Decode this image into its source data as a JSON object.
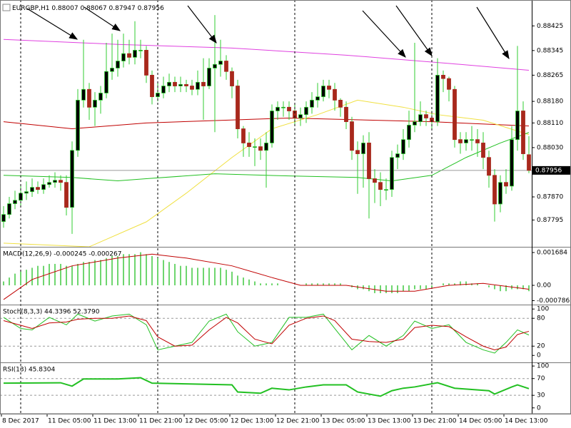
{
  "chart_data": [
    {
      "type": "candlestick",
      "symbol": "EURGBP,H1",
      "categories": [
        "8 Dec 2017",
        null,
        null,
        null,
        null,
        null,
        null,
        null,
        "11 Dec 05:00",
        null,
        null,
        null,
        null,
        null,
        null,
        null,
        "11 Dec 13:00",
        null,
        null,
        null,
        null,
        null,
        null,
        null,
        "11 Dec 21:00",
        null,
        null,
        null,
        null,
        null,
        null,
        null,
        "12 Dec 05:00",
        null,
        null,
        null,
        null,
        null,
        null,
        null,
        "12 Dec 13:00",
        null,
        null,
        null,
        null,
        null,
        null,
        null,
        "12 Dec 21:00",
        null,
        null,
        null,
        null,
        null,
        null,
        null,
        "13 Dec 05:00",
        null,
        null,
        null,
        null,
        null,
        null,
        null,
        "13 Dec 13:00",
        null,
        null,
        null,
        null,
        null,
        null,
        null,
        "13 Dec 21:00",
        null,
        null,
        null,
        null,
        null,
        null,
        null,
        "14 Dec 05:00",
        null,
        null,
        null,
        null,
        null,
        null,
        null,
        "14 Dec 13:00",
        null,
        null,
        null,
        null
      ],
      "open": [
        0.8779,
        0.87813,
        0.87848,
        0.87859,
        0.87882,
        0.87887,
        0.87901,
        0.87894,
        0.8791,
        0.87917,
        0.87924,
        0.87917,
        0.87836,
        0.88021,
        0.88184,
        0.88219,
        0.88161,
        0.88184,
        0.88207,
        0.88277,
        0.88288,
        0.88311,
        0.88335,
        0.88323,
        0.88346,
        0.88346,
        0.88265,
        0.88195,
        0.88207,
        0.8823,
        0.88242,
        0.8823,
        0.88235,
        0.8823,
        0.88219,
        0.88242,
        0.8823,
        0.88288,
        0.883,
        0.88311,
        0.88277,
        0.8823,
        0.88091,
        0.88045,
        0.88033,
        0.88033,
        0.88021,
        0.88045,
        0.88149,
        0.88161,
        0.88161,
        0.88149,
        0.88126,
        0.88137,
        0.88161,
        0.88184,
        0.88195,
        0.8823,
        0.88219,
        0.88184,
        0.88161,
        0.88114,
        0.88021,
        0.8801,
        0.88045,
        0.87929,
        0.87917,
        0.87894,
        0.87894,
        0.87998,
        0.8801,
        0.88056,
        0.88103,
        0.88114,
        0.88137,
        0.88126,
        0.88114,
        0.88265,
        0.88254,
        0.88219,
        0.88056,
        0.88045,
        0.88056,
        0.88056,
        0.88045,
        0.87998,
        0.8794,
        0.87847,
        0.87917,
        0.87905,
        0.88056,
        0.88149,
        0.88007
      ],
      "high": [
        0.8784,
        0.8787,
        0.8789,
        0.8791,
        0.8792,
        0.8793,
        0.8792,
        0.8793,
        0.8794,
        0.8795,
        0.8794,
        0.8794,
        0.8805,
        0.8822,
        0.8838,
        0.8824,
        0.8821,
        0.8823,
        0.8837,
        0.884,
        0.8838,
        0.884,
        0.8838,
        0.8844,
        0.8838,
        0.8836,
        0.8828,
        0.8824,
        0.8826,
        0.8827,
        0.8826,
        0.8826,
        0.8825,
        0.8825,
        0.8828,
        0.8832,
        0.8832,
        0.8846,
        0.8838,
        0.8833,
        0.8829,
        0.8825,
        0.881,
        0.8808,
        0.8806,
        0.8806,
        0.8808,
        0.8817,
        0.8818,
        0.8818,
        0.8818,
        0.8817,
        0.8816,
        0.8818,
        0.8821,
        0.8824,
        0.8825,
        0.8825,
        0.8824,
        0.8819,
        0.8818,
        0.8813,
        0.8805,
        0.8807,
        0.8808,
        0.8796,
        0.8795,
        0.8793,
        0.8802,
        0.8804,
        0.8809,
        0.8815,
        0.8837,
        0.8818,
        0.8815,
        0.8815,
        0.8832,
        0.8828,
        0.8826,
        0.8823,
        0.8808,
        0.8808,
        0.881,
        0.8809,
        0.8808,
        0.8802,
        0.8796,
        0.8794,
        0.8796,
        0.881,
        0.8836,
        0.8818,
        0.88067
      ],
      "low": [
        0.8777,
        0.878,
        0.8783,
        0.8784,
        0.8786,
        0.8787,
        0.8788,
        0.8788,
        0.879,
        0.879,
        0.8789,
        0.8781,
        0.8775,
        0.88,
        0.8816,
        0.8812,
        0.881,
        0.8814,
        0.8819,
        0.8825,
        0.8826,
        0.8829,
        0.883,
        0.883,
        0.8832,
        0.8824,
        0.8817,
        0.8818,
        0.8819,
        0.8821,
        0.8821,
        0.8821,
        0.8821,
        0.882,
        0.882,
        0.8812,
        0.8822,
        0.8808,
        0.8826,
        0.8825,
        0.8819,
        0.8806,
        0.88,
        0.88,
        0.8797,
        0.8799,
        0.879,
        0.8803,
        0.8812,
        0.8813,
        0.8812,
        0.881,
        0.881,
        0.8811,
        0.8814,
        0.8816,
        0.8818,
        0.8819,
        0.8815,
        0.8813,
        0.8809,
        0.8799,
        0.8788,
        0.879,
        0.878,
        0.8785,
        0.8784,
        0.8786,
        0.8787,
        0.8796,
        0.8799,
        0.8803,
        0.8808,
        0.881,
        0.881,
        0.8809,
        0.881,
        0.8821,
        0.8818,
        0.8803,
        0.8801,
        0.8802,
        0.8802,
        0.88,
        0.8796,
        0.879,
        0.8779,
        0.8782,
        0.8788,
        0.8789,
        0.8802,
        0.8799,
        0.87947
      ],
      "close": [
        0.87813,
        0.87848,
        0.87859,
        0.87882,
        0.87887,
        0.87901,
        0.87894,
        0.8791,
        0.87917,
        0.87924,
        0.87917,
        0.87836,
        0.88021,
        0.88184,
        0.88219,
        0.88161,
        0.88184,
        0.88207,
        0.88277,
        0.88288,
        0.88311,
        0.88335,
        0.88323,
        0.88346,
        0.88346,
        0.88265,
        0.88195,
        0.88207,
        0.8823,
        0.88242,
        0.8823,
        0.88235,
        0.8823,
        0.88219,
        0.88242,
        0.8823,
        0.88288,
        0.883,
        0.88311,
        0.88277,
        0.8823,
        0.88091,
        0.88045,
        0.88033,
        0.88033,
        0.88021,
        0.88045,
        0.88149,
        0.88161,
        0.88161,
        0.88149,
        0.88126,
        0.88137,
        0.88161,
        0.88184,
        0.88195,
        0.8823,
        0.88219,
        0.88184,
        0.88161,
        0.88114,
        0.88021,
        0.8801,
        0.88045,
        0.87929,
        0.87917,
        0.87894,
        0.87894,
        0.87998,
        0.8801,
        0.88056,
        0.88103,
        0.88114,
        0.88137,
        0.88126,
        0.88114,
        0.88265,
        0.88254,
        0.88219,
        0.88056,
        0.88045,
        0.88056,
        0.88056,
        0.88045,
        0.87998,
        0.8794,
        0.87847,
        0.87917,
        0.87905,
        0.88056,
        0.88149,
        0.8801,
        0.87956
      ],
      "up_color": "#000000",
      "down_color": "#a8281c",
      "wick_color": "#32cd32",
      "series": [
        {
          "color": "#e040e0",
          "x": [
            0,
            20,
            40,
            60,
            80,
            92
          ],
          "values": [
            0.88381,
            0.88365,
            0.88353,
            0.8833,
            0.883,
            0.88281
          ]
        },
        {
          "color": "#c00000",
          "x": [
            0,
            12,
            25,
            50,
            75,
            92
          ],
          "values": [
            0.88114,
            0.88091,
            0.8811,
            0.88126,
            0.88114,
            0.881
          ]
        },
        {
          "color": "#f0e040",
          "x": [
            0,
            15,
            25,
            32,
            40,
            47,
            55,
            62,
            70,
            76,
            84,
            92
          ],
          "values": [
            0.8772,
            0.87708,
            0.87789,
            0.87882,
            0.87998,
            0.88091,
            0.88137,
            0.88184,
            0.88161,
            0.88137,
            0.88119,
            0.88072
          ]
        },
        {
          "color": "#22c022",
          "x": [
            0,
            12,
            20,
            25,
            37,
            50,
            62,
            68,
            75,
            81,
            87,
            92
          ],
          "values": [
            0.8794,
            0.87933,
            0.87922,
            0.87929,
            0.87945,
            0.87938,
            0.87933,
            0.87922,
            0.8794,
            0.87998,
            0.88045,
            0.88079
          ]
        }
      ],
      "ylim": [
        0.87708,
        0.88509
      ],
      "yticks": [
        0.88425,
        0.88345,
        0.88265,
        {
          "value": 0.8818,
          "label": "0.88180"
        },
        {
          "value": 0.8811,
          "label": "0.88110"
        },
        {
          "value": 0.8803,
          "label": "0.88030"
        },
        {
          "value": 0.8787,
          "label": "0.87870"
        },
        0.87795
      ]
    },
    {
      "type": "bar",
      "title": "MACD(12,26,9) -0.000245 -0.000267",
      "color": "#6fd66f",
      "values": [
        0.0002,
        0.0004,
        0.0006,
        0.0007,
        0.0008,
        0.0009,
        0.001,
        0.001,
        0.0011,
        0.0011,
        0.0011,
        0.001,
        0.001,
        0.0011,
        0.0012,
        0.0012,
        0.0013,
        0.0013,
        0.0014,
        0.0015,
        0.0015,
        0.0016,
        0.0016,
        0.0016,
        0.0017,
        0.0016,
        0.0015,
        0.0014,
        0.0013,
        0.0012,
        0.0011,
        0.001,
        0.001,
        0.0009,
        0.0009,
        0.0009,
        0.0009,
        0.0009,
        0.0009,
        0.0008,
        0.0007,
        0.0005,
        0.0004,
        0.0003,
        0.0002,
        0.0001,
        0.0001,
        0.0001,
        0.0001,
        0,
        0,
        0,
        0,
        0.0001,
        0.0001,
        0.0001,
        0.0001,
        0.0001,
        0.0001,
        0.0001,
        0,
        -0.0001,
        -0.0002,
        -0.0002,
        -0.0003,
        -0.0004,
        -0.0004,
        -0.0004,
        -0.0004,
        -0.0004,
        -0.0003,
        -0.0003,
        -0.0002,
        -0.0002,
        -0.0002,
        -0.0001,
        0,
        0.0001,
        0.0001,
        0.0001,
        0.0002,
        0.0002,
        0.0001,
        0.0001,
        0,
        -0.0001,
        -0.0002,
        -0.0003,
        -0.0003,
        -0.0002,
        -0.0002,
        -0.0002,
        -0.0003
      ],
      "series": [
        {
          "color": "#c00000",
          "x": [
            0,
            5,
            12,
            20,
            26,
            32,
            40,
            47,
            52,
            60,
            67,
            72,
            78,
            84,
            92
          ],
          "values": [
            -0.00073,
            0.0003,
            0.001,
            0.0014,
            0.0016,
            0.0014,
            0.001,
            0.0004,
            0,
            0,
            -0.0003,
            -0.0003,
            0,
            0.0001,
            -0.0002
          ]
        }
      ],
      "ylim": [
        -0.000988,
        0.00194
      ],
      "yticks": [
        0.001684,
        {
          "value": 0,
          "label": "0.00"
        },
        -0.000786
      ]
    },
    {
      "type": "line",
      "title": "Stoch(8,3,3) 44.3396 52.3790",
      "series": [
        {
          "color": "#22c022",
          "x": [
            0,
            3,
            5,
            8,
            11,
            13,
            16,
            19,
            22,
            25,
            27,
            30,
            33,
            36,
            39,
            41,
            44,
            47,
            50,
            53,
            56,
            58,
            61,
            64,
            67,
            70,
            72,
            75,
            78,
            81,
            84,
            86,
            88,
            90,
            92
          ],
          "values": [
            82,
            58,
            55,
            82,
            66,
            89,
            74,
            85,
            89,
            66,
            12,
            20,
            28,
            74,
            89,
            51,
            20,
            28,
            82,
            82,
            89,
            58,
            12,
            43,
            20,
            43,
            74,
            58,
            66,
            28,
            12,
            5,
            28,
            55,
            44
          ]
        },
        {
          "color": "#c00000",
          "x": [
            0,
            3,
            5,
            8,
            11,
            13,
            16,
            19,
            22,
            25,
            27,
            30,
            33,
            36,
            39,
            41,
            44,
            47,
            50,
            53,
            56,
            58,
            61,
            64,
            67,
            70,
            72,
            75,
            78,
            81,
            84,
            86,
            88,
            90,
            92
          ],
          "values": [
            75,
            65,
            58,
            70,
            72,
            78,
            80,
            80,
            85,
            75,
            40,
            20,
            22,
            55,
            82,
            70,
            35,
            25,
            65,
            80,
            85,
            75,
            35,
            30,
            28,
            35,
            60,
            65,
            62,
            40,
            20,
            12,
            18,
            45,
            52
          ]
        }
      ],
      "ylim": [
        -15,
        108
      ],
      "yticks": [
        100,
        80,
        20,
        0
      ]
    },
    {
      "type": "line",
      "title": "RSI(13) 45.8304",
      "series": [
        {
          "color": "#22c022",
          "x": [
            0,
            10,
            12,
            14,
            20,
            24,
            26,
            40,
            41,
            45,
            47,
            50,
            53,
            56,
            60,
            62,
            64,
            66,
            68,
            70,
            72,
            76,
            79,
            85,
            86,
            89,
            90,
            92
          ],
          "values": [
            59,
            60,
            52,
            69,
            69,
            72,
            59,
            55,
            38,
            35,
            47,
            43,
            50,
            55,
            55,
            38,
            33,
            28,
            41,
            47,
            50,
            60,
            47,
            41,
            33,
            50,
            55,
            46
          ]
        }
      ],
      "ylim": [
        -14,
        107
      ],
      "yticks": [
        100,
        70,
        30,
        0
      ]
    }
  ]
}
